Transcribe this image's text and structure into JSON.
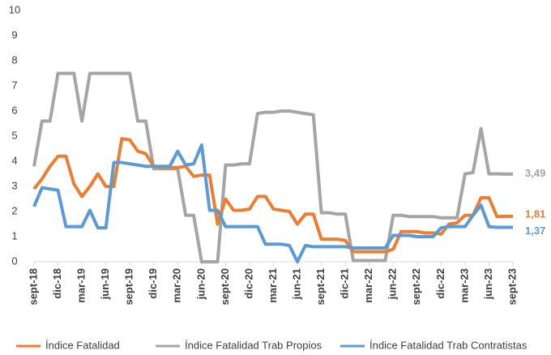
{
  "chart_data": {
    "type": "line",
    "categories": [
      "sept-18",
      null,
      null,
      "dic-18",
      null,
      null,
      "mar-19",
      null,
      null,
      "jun-19",
      null,
      null,
      "sept-19",
      null,
      null,
      "dic-19",
      null,
      null,
      "mar-20",
      null,
      null,
      "jun-20",
      null,
      null,
      "sept-20",
      null,
      null,
      "dic-20",
      null,
      null,
      "mar-21",
      null,
      null,
      "jun-21",
      null,
      null,
      "sept-21",
      null,
      null,
      "dic-21",
      null,
      null,
      "mar-22",
      null,
      null,
      "jun-22",
      null,
      null,
      "sept-22",
      null,
      null,
      "dic-22",
      null,
      null,
      "mar-23",
      null,
      null,
      "jun-23",
      null,
      null,
      "sept-23"
    ],
    "ylim": [
      0,
      10
    ],
    "yticks": [
      0,
      1,
      2,
      3,
      4,
      5,
      6,
      7,
      8,
      9,
      10
    ],
    "legend": "bottom",
    "series": [
      {
        "name": "Índice Fatalidad",
        "color": "#ed7d31",
        "values": [
          2.9,
          3.3,
          3.8,
          4.2,
          4.2,
          3.1,
          2.6,
          3.0,
          3.5,
          3.0,
          3.0,
          4.9,
          4.85,
          4.4,
          4.3,
          3.8,
          3.75,
          3.75,
          3.75,
          3.8,
          3.4,
          3.45,
          3.45,
          1.5,
          2.5,
          2.05,
          2.05,
          2.1,
          2.6,
          2.6,
          2.1,
          2.05,
          2.0,
          1.5,
          1.9,
          1.9,
          0.9,
          0.9,
          0.9,
          0.85,
          0.4,
          0.4,
          0.4,
          0.4,
          0.4,
          0.5,
          1.2,
          1.2,
          1.2,
          1.15,
          1.15,
          1.1,
          1.5,
          1.55,
          1.85,
          1.85,
          2.55,
          2.55,
          1.8,
          1.81,
          1.81
        ],
        "value_labels": [
          null,
          null,
          null,
          null,
          null,
          null,
          null,
          null,
          null,
          null,
          null,
          null,
          null,
          null,
          null,
          null,
          null,
          null,
          null,
          null,
          null,
          null,
          null,
          null,
          null,
          null,
          null,
          null,
          null,
          null,
          null,
          null,
          null,
          null,
          null,
          null,
          null,
          null,
          null,
          null,
          null,
          null,
          null,
          null,
          null,
          null,
          null,
          null,
          null,
          null,
          null,
          null,
          null,
          null,
          null,
          null,
          null,
          null,
          null,
          null,
          "1,81"
        ]
      },
      {
        "name": "Índice Fatalidad Trab Propios",
        "color": "#a5a5a5",
        "values": [
          3.8,
          5.6,
          5.6,
          7.5,
          7.5,
          7.5,
          5.6,
          7.5,
          7.5,
          7.5,
          7.5,
          7.5,
          7.5,
          5.6,
          5.6,
          3.7,
          3.7,
          3.7,
          3.7,
          1.85,
          1.85,
          0,
          0,
          0,
          3.85,
          3.85,
          3.9,
          3.9,
          5.9,
          5.95,
          5.95,
          6.0,
          6.0,
          5.95,
          5.9,
          5.85,
          1.95,
          1.95,
          1.9,
          1.9,
          0.05,
          0.05,
          0.05,
          0.05,
          0.05,
          1.85,
          1.85,
          1.8,
          1.8,
          1.8,
          1.8,
          1.75,
          1.75,
          1.75,
          3.5,
          3.55,
          5.3,
          3.5,
          3.5,
          3.49,
          3.49
        ],
        "value_labels": [
          null,
          null,
          null,
          null,
          null,
          null,
          null,
          null,
          null,
          null,
          null,
          null,
          null,
          null,
          null,
          null,
          null,
          null,
          null,
          null,
          null,
          null,
          null,
          null,
          null,
          null,
          null,
          null,
          null,
          null,
          null,
          null,
          null,
          null,
          null,
          null,
          null,
          null,
          null,
          null,
          null,
          null,
          null,
          null,
          null,
          null,
          null,
          null,
          null,
          null,
          null,
          null,
          null,
          null,
          null,
          null,
          null,
          null,
          null,
          null,
          "3,49"
        ]
      },
      {
        "name": "Índice Fatalidad Trab Contratistas",
        "color": "#5b9bd5",
        "values": [
          2.2,
          2.95,
          2.9,
          2.85,
          1.4,
          1.4,
          1.4,
          2.05,
          1.35,
          1.35,
          3.95,
          3.95,
          3.9,
          3.85,
          3.8,
          3.8,
          3.8,
          3.8,
          4.4,
          3.85,
          3.9,
          4.65,
          2.05,
          2.05,
          1.4,
          1.4,
          1.4,
          1.4,
          1.4,
          0.7,
          0.7,
          0.7,
          0.65,
          0,
          0.65,
          0.6,
          0.6,
          0.6,
          0.6,
          0.6,
          0.55,
          0.55,
          0.55,
          0.55,
          0.55,
          1.05,
          1.05,
          1.05,
          1.0,
          1.0,
          1.0,
          1.35,
          1.4,
          1.4,
          1.4,
          1.85,
          2.25,
          1.4,
          1.37,
          1.37,
          1.37
        ],
        "value_labels": [
          null,
          null,
          null,
          null,
          null,
          null,
          null,
          null,
          null,
          null,
          null,
          null,
          null,
          null,
          null,
          null,
          null,
          null,
          null,
          null,
          null,
          null,
          null,
          null,
          null,
          null,
          null,
          null,
          null,
          null,
          null,
          null,
          null,
          null,
          null,
          null,
          null,
          null,
          null,
          null,
          null,
          null,
          null,
          null,
          null,
          null,
          null,
          null,
          null,
          null,
          null,
          null,
          null,
          null,
          null,
          null,
          null,
          null,
          null,
          null,
          "1,37"
        ]
      }
    ]
  }
}
